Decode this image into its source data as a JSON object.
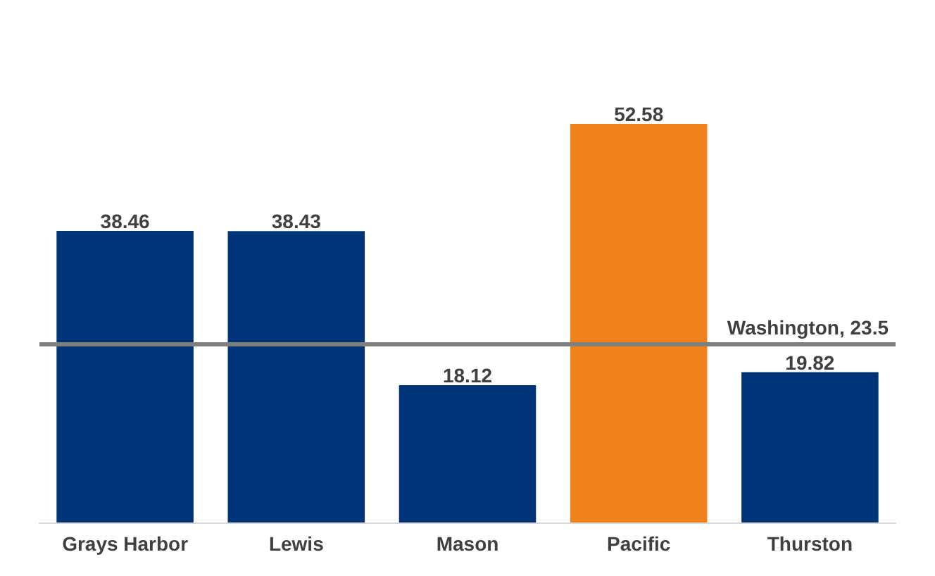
{
  "chart_data": {
    "type": "bar",
    "categories": [
      "Grays Harbor",
      "Lewis",
      "Mason",
      "Pacific",
      "Thurston"
    ],
    "values": [
      38.46,
      38.43,
      18.12,
      52.58,
      19.82
    ],
    "colors": [
      "#003478",
      "#003478",
      "#003478",
      "#f0821e",
      "#003478"
    ],
    "data_labels": true,
    "ref_lines": [
      {
        "axis": "y",
        "value": 23.5,
        "label": "Washington, 23.5",
        "color": "#7f7f7f"
      }
    ]
  }
}
